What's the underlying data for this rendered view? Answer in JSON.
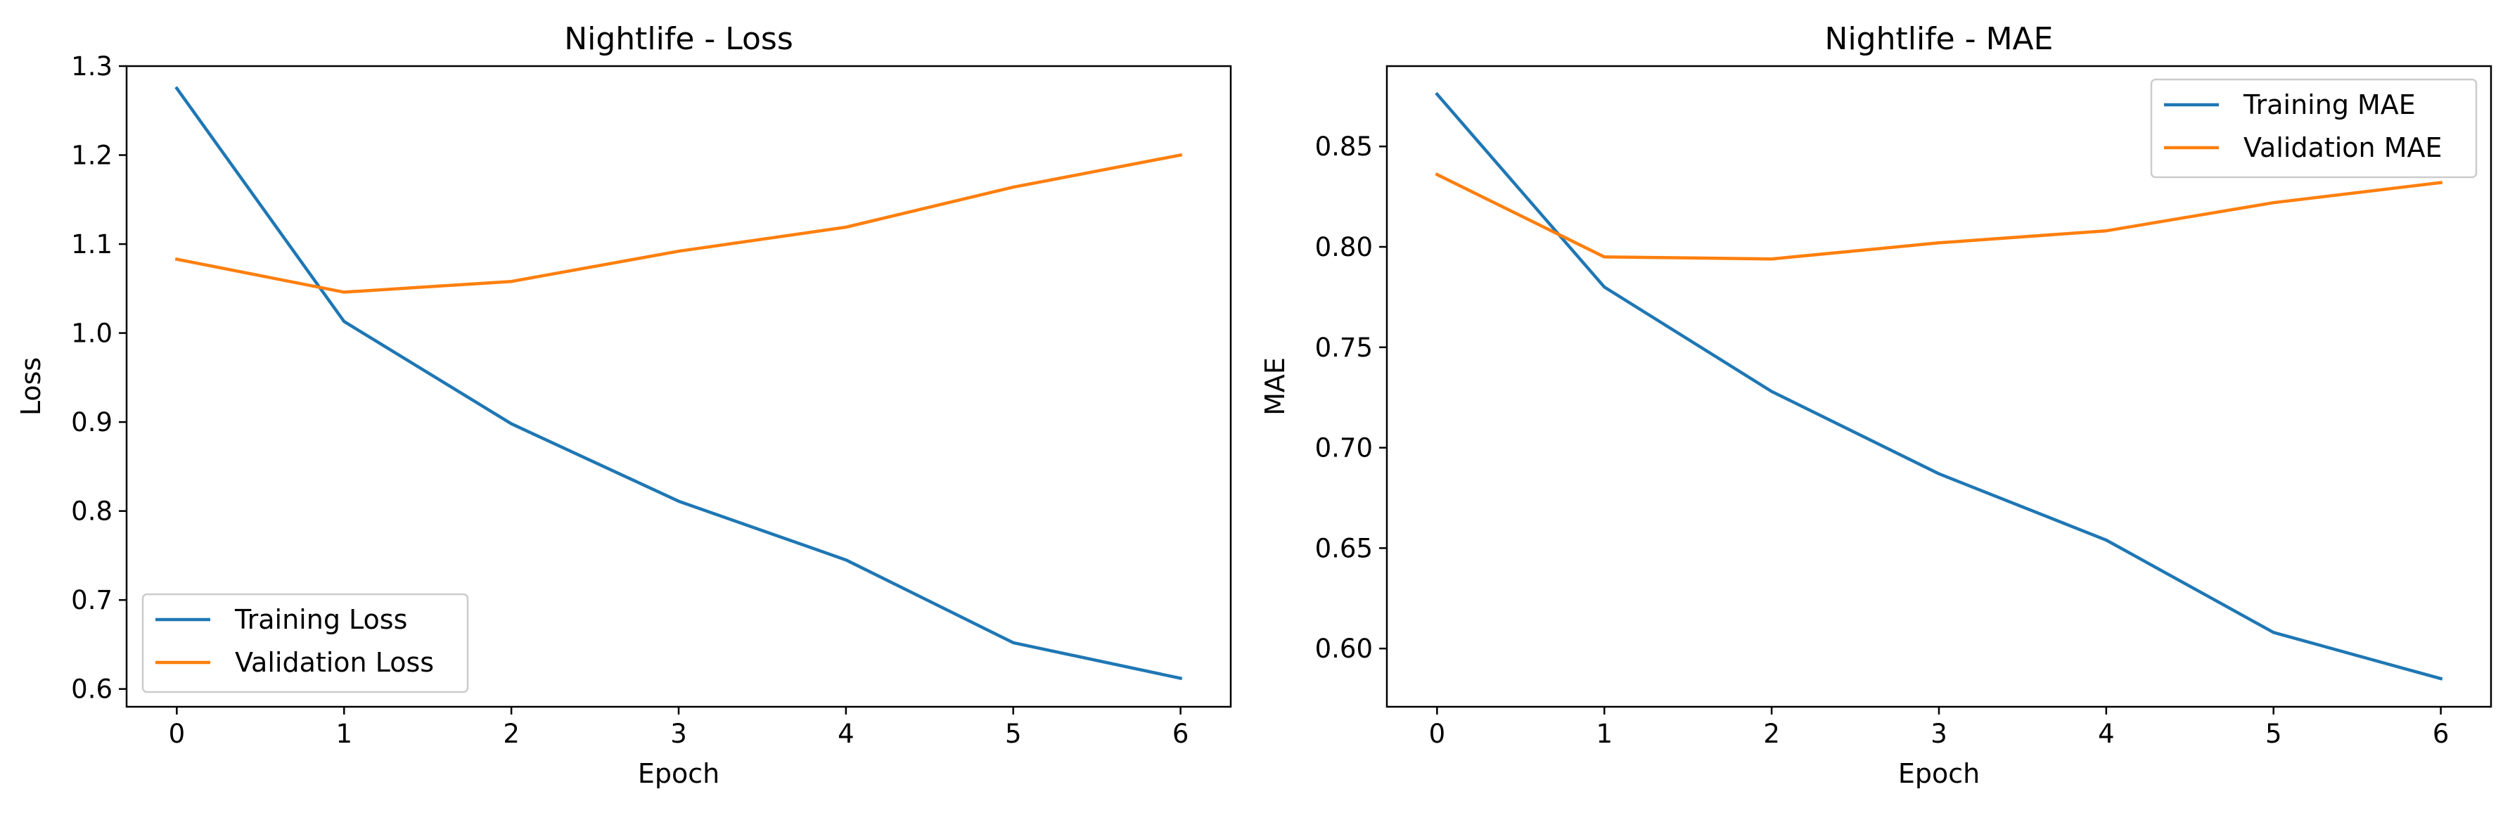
{
  "chart_data": [
    {
      "type": "line",
      "title": "Nightlife - Loss",
      "xlabel": "Epoch",
      "ylabel": "Loss",
      "x": [
        0,
        1,
        2,
        3,
        4,
        5,
        6
      ],
      "xlim": [
        -0.3,
        6.3
      ],
      "ylim": [
        0.58,
        1.3
      ],
      "xticks": [
        0,
        1,
        2,
        3,
        4,
        5,
        6
      ],
      "yticks": [
        0.6,
        0.7,
        0.8,
        0.9,
        1.0,
        1.1,
        1.2,
        1.3
      ],
      "ytick_labels": [
        "0.6",
        "0.7",
        "0.8",
        "0.9",
        "1.0",
        "1.1",
        "1.2",
        "1.3"
      ],
      "grid": false,
      "legend_position": "lower-left",
      "series": [
        {
          "name": "Training Loss",
          "color": "#1f77b4",
          "values": [
            1.275,
            1.013,
            0.898,
            0.811,
            0.745,
            0.652,
            0.612
          ]
        },
        {
          "name": "Validation Loss",
          "color": "#ff7f0e",
          "values": [
            1.083,
            1.046,
            1.058,
            1.092,
            1.119,
            1.164,
            1.2
          ]
        }
      ]
    },
    {
      "type": "line",
      "title": "Nightlife - MAE",
      "xlabel": "Epoch",
      "ylabel": "MAE",
      "x": [
        0,
        1,
        2,
        3,
        4,
        5,
        6
      ],
      "xlim": [
        -0.3,
        6.3
      ],
      "ylim": [
        0.571,
        0.89
      ],
      "xticks": [
        0,
        1,
        2,
        3,
        4,
        5,
        6
      ],
      "yticks": [
        0.6,
        0.65,
        0.7,
        0.75,
        0.8,
        0.85
      ],
      "ytick_labels": [
        "0.60",
        "0.65",
        "0.70",
        "0.75",
        "0.80",
        "0.85"
      ],
      "grid": false,
      "legend_position": "upper-right",
      "series": [
        {
          "name": "Training MAE",
          "color": "#1f77b4",
          "values": [
            0.876,
            0.78,
            0.728,
            0.687,
            0.654,
            0.608,
            0.585
          ]
        },
        {
          "name": "Validation MAE",
          "color": "#ff7f0e",
          "values": [
            0.836,
            0.795,
            0.794,
            0.802,
            0.808,
            0.822,
            0.832
          ]
        }
      ]
    }
  ]
}
